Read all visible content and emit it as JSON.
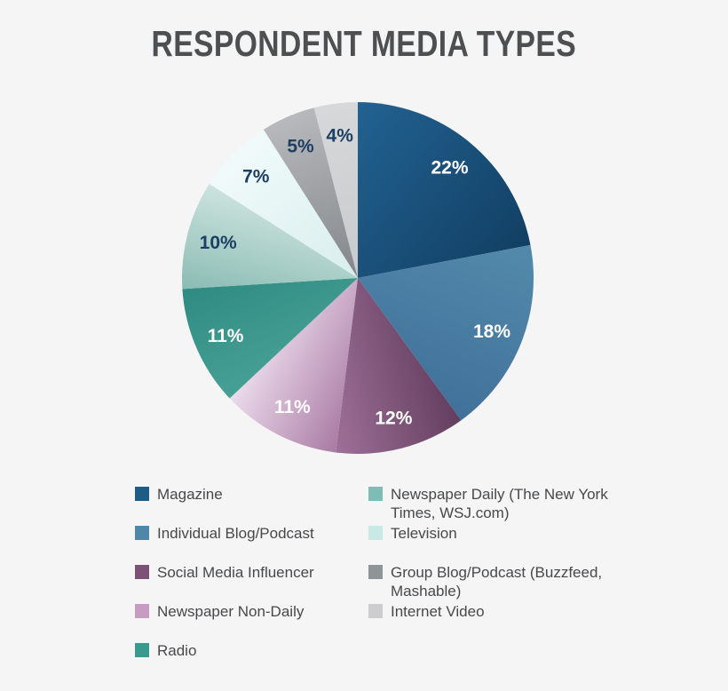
{
  "colors": {
    "background": "#f5f5f6",
    "title_text": "#4e4f51",
    "legend_text": "#47484a",
    "label_dark": "#1c3f63",
    "label_light": "#ffffff"
  },
  "chart_data": {
    "type": "pie",
    "title": "RESPONDENT MEDIA TYPES",
    "unit": "%",
    "start_angle_deg": 0,
    "direction": "clockwise",
    "legend_position": "bottom-two-columns",
    "slices": [
      {
        "label": "Magazine",
        "value": 22,
        "color_start": "#226292",
        "color_end": "#123f63",
        "swatch": "#1f5c84",
        "gradient": "cw",
        "label_color": "#ffffff"
      },
      {
        "label": "Individual Blog/Podcast",
        "value": 18,
        "color_start": "#538aab",
        "color_end": "#41719a",
        "swatch": "#4f87a8",
        "gradient": "cw",
        "label_color": "#ffffff"
      },
      {
        "label": "Social Media Influencer",
        "value": 12,
        "color_start": "#633e5e",
        "color_end": "#9e7099",
        "swatch": "#7a5276",
        "gradient": "cw",
        "label_color": "#ffffff"
      },
      {
        "label": "Newspaper Non-Daily",
        "value": 11,
        "color_start": "#a97ba4",
        "color_end": "#ecdcec",
        "swatch": "#c59cc2",
        "gradient": "cw",
        "label_color": "#ffffff"
      },
      {
        "label": "Radio",
        "value": 11,
        "color_start": "#47a095",
        "color_end": "#2f8b82",
        "swatch": "#3a9a8e",
        "gradient": "cw",
        "label_color": "#ffffff"
      },
      {
        "label": "Newspaper Daily (The New York Times, WSJ.com)",
        "value": 10,
        "color_start": "#8abcb4",
        "color_end": "#cde3de",
        "swatch": "#7ebcb6",
        "gradient": "cw",
        "label_color": "#1c3f63"
      },
      {
        "label": "Television",
        "value": 7,
        "color_start": "#d8eeec",
        "color_end": "#f1fafb",
        "swatch": "#c9e9e6",
        "gradient": "out",
        "label_color": "#1c3f63"
      },
      {
        "label": "Group Blog/Podcast (Buzzfeed, Mashable)",
        "value": 5,
        "color_start": "#82868a",
        "color_end": "#b7b9bc",
        "swatch": "#8f9496",
        "gradient": "out",
        "label_color": "#1c3f63"
      },
      {
        "label": "Internet Video",
        "value": 4,
        "color_start": "#c9cacc",
        "color_end": "#d7d8da",
        "swatch": "#cdcdcf",
        "gradient": "out",
        "label_color": "#1c3f63"
      }
    ],
    "legend_columns": [
      [
        0,
        1,
        2,
        3,
        4
      ],
      [
        5,
        6,
        7,
        8
      ]
    ]
  }
}
